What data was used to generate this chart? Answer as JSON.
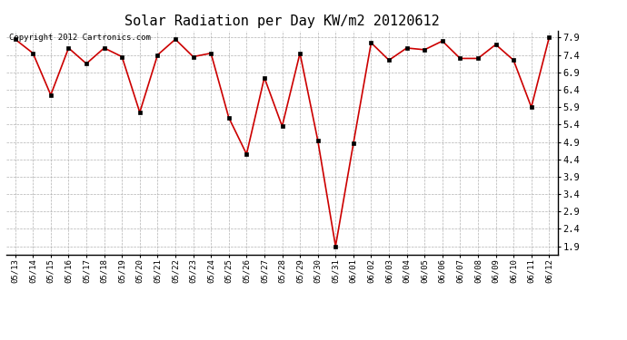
{
  "title": "Solar Radiation per Day KW/m2 20120612",
  "copyright_text": "Copyright 2012 Cartronics.com",
  "x_labels": [
    "05/13",
    "05/14",
    "05/15",
    "05/16",
    "05/17",
    "05/18",
    "05/19",
    "05/20",
    "05/21",
    "05/22",
    "05/23",
    "05/24",
    "05/25",
    "05/26",
    "05/27",
    "05/28",
    "05/29",
    "05/30",
    "05/31",
    "06/01",
    "06/02",
    "06/03",
    "06/04",
    "06/05",
    "06/06",
    "06/07",
    "06/08",
    "06/09",
    "06/10",
    "06/11",
    "06/12"
  ],
  "y_values": [
    7.85,
    7.45,
    6.25,
    7.6,
    7.15,
    7.6,
    7.35,
    5.75,
    7.4,
    7.85,
    7.35,
    7.45,
    5.6,
    4.55,
    6.75,
    5.35,
    7.45,
    4.95,
    1.9,
    4.85,
    7.75,
    7.25,
    7.6,
    7.55,
    7.8,
    7.3,
    7.3,
    7.7,
    7.25,
    5.9,
    7.9
  ],
  "line_color": "#cc0000",
  "marker_color": "#000000",
  "bg_color": "#ffffff",
  "plot_bg_color": "#ffffff",
  "grid_color": "#aaaaaa",
  "title_fontsize": 11,
  "y_ticks": [
    1.9,
    2.4,
    2.9,
    3.4,
    3.9,
    4.4,
    4.9,
    5.4,
    5.9,
    6.4,
    6.9,
    7.4,
    7.9
  ],
  "ylim": [
    1.65,
    8.1
  ],
  "copyright_fontsize": 6.5,
  "tick_fontsize": 6.5,
  "ytick_fontsize": 7.5
}
